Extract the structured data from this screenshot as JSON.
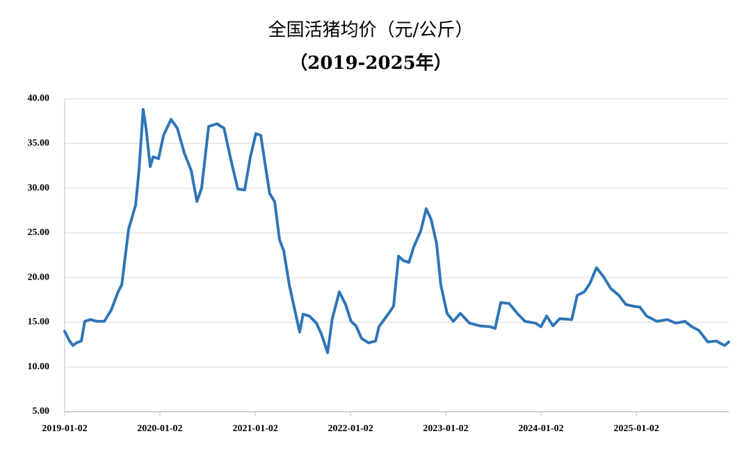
{
  "chart_data": {
    "type": "line",
    "title": "全国活猪均价（元/公斤）",
    "subtitle": "（2019-2025年）",
    "x": [
      "2019-01-02",
      "2019-01-21",
      "2019-02-03",
      "2019-02-16",
      "2019-03-07",
      "2019-03-20",
      "2019-04-11",
      "2019-05-07",
      "2019-06-03",
      "2019-06-30",
      "2019-07-26",
      "2019-08-09",
      "2019-09-04",
      "2019-10-01",
      "2019-10-14",
      "2019-10-30",
      "2019-11-10",
      "2019-11-26",
      "2019-12-07",
      "2019-12-28",
      "2020-01-16",
      "2020-02-14",
      "2020-03-09",
      "2020-04-05",
      "2020-05-01",
      "2020-05-23",
      "2020-06-10",
      "2020-07-07",
      "2020-08-08",
      "2020-09-04",
      "2020-09-30",
      "2020-10-27",
      "2020-11-22",
      "2020-12-14",
      "2021-01-04",
      "2021-01-23",
      "2021-02-10",
      "2021-02-26",
      "2021-03-17",
      "2021-04-05",
      "2021-04-21",
      "2021-05-12",
      "2021-06-02",
      "2021-06-21",
      "2021-07-04",
      "2021-07-28",
      "2021-08-24",
      "2021-09-12",
      "2021-10-06",
      "2021-10-24",
      "2021-11-20",
      "2021-12-14",
      "2022-01-04",
      "2022-01-23",
      "2022-02-13",
      "2022-03-12",
      "2022-04-08",
      "2022-04-21",
      "2022-05-26",
      "2022-06-16",
      "2022-07-05",
      "2022-07-23",
      "2022-08-14",
      "2022-09-01",
      "2022-09-28",
      "2022-10-19",
      "2022-11-07",
      "2022-11-28",
      "2022-12-14",
      "2023-01-07",
      "2023-01-31",
      "2023-02-27",
      "2023-04-03",
      "2023-05-13",
      "2023-06-22",
      "2023-07-10",
      "2023-08-01",
      "2023-09-02",
      "2023-10-06",
      "2023-11-02",
      "2023-12-12",
      "2024-01-02",
      "2024-01-24",
      "2024-02-17",
      "2024-03-14",
      "2024-04-29",
      "2024-05-20",
      "2024-06-16",
      "2024-07-07",
      "2024-08-02",
      "2024-08-29",
      "2024-09-25",
      "2024-10-27",
      "2024-11-22",
      "2024-12-19",
      "2025-01-15",
      "2025-02-10",
      "2025-03-22",
      "2025-05-01",
      "2025-06-02",
      "2025-07-07",
      "2025-08-03",
      "2025-08-29",
      "2025-10-03",
      "2025-11-04",
      "2025-12-06",
      "2025-12-22"
    ],
    "series": [
      {
        "color": "#2e75b6",
        "values": [
          14.0,
          12.9,
          12.4,
          12.7,
          12.9,
          15.1,
          15.3,
          15.1,
          15.1,
          16.4,
          18.4,
          19.2,
          25.4,
          28.1,
          32.0,
          38.8,
          36.7,
          32.4,
          33.5,
          33.3,
          35.9,
          37.7,
          36.7,
          33.9,
          32.0,
          28.5,
          30.0,
          36.9,
          37.2,
          36.7,
          33.2,
          29.9,
          29.8,
          33.5,
          36.1,
          35.9,
          32.4,
          29.4,
          28.5,
          24.2,
          23.0,
          19.2,
          16.4,
          13.9,
          15.9,
          15.7,
          14.9,
          13.7,
          11.6,
          15.4,
          18.4,
          17.0,
          15.1,
          14.6,
          13.2,
          12.7,
          12.9,
          14.5,
          15.9,
          16.8,
          22.4,
          21.9,
          21.7,
          23.4,
          25.2,
          27.7,
          26.5,
          23.8,
          19.2,
          16.0,
          15.1,
          16.0,
          14.9,
          14.6,
          14.5,
          14.3,
          17.2,
          17.1,
          15.9,
          15.1,
          14.9,
          14.5,
          15.7,
          14.6,
          15.4,
          15.3,
          18.0,
          18.4,
          19.3,
          21.1,
          20.1,
          18.8,
          18.0,
          17.0,
          16.8,
          16.7,
          15.7,
          15.1,
          15.3,
          14.9,
          15.1,
          14.5,
          14.1,
          12.8,
          12.9,
          12.4,
          12.8
        ]
      }
    ],
    "xlim": [
      "2019-01-02",
      "2025-12-22"
    ],
    "xticks": [
      "2019-01-02",
      "2020-01-02",
      "2021-01-02",
      "2022-01-02",
      "2023-01-02",
      "2024-01-02",
      "2025-01-02"
    ],
    "ylim": [
      5,
      40
    ],
    "yticks": [
      {
        "value": 5,
        "label": "5.00"
      },
      {
        "value": 10,
        "label": "10.00"
      },
      {
        "value": 15,
        "label": "15.00"
      },
      {
        "value": 20,
        "label": "20.00"
      },
      {
        "value": 25,
        "label": "25.00"
      },
      {
        "value": 30,
        "label": "30.00"
      },
      {
        "value": 35,
        "label": "35.00"
      },
      {
        "value": 40,
        "label": "40.00"
      }
    ],
    "grid": true
  }
}
